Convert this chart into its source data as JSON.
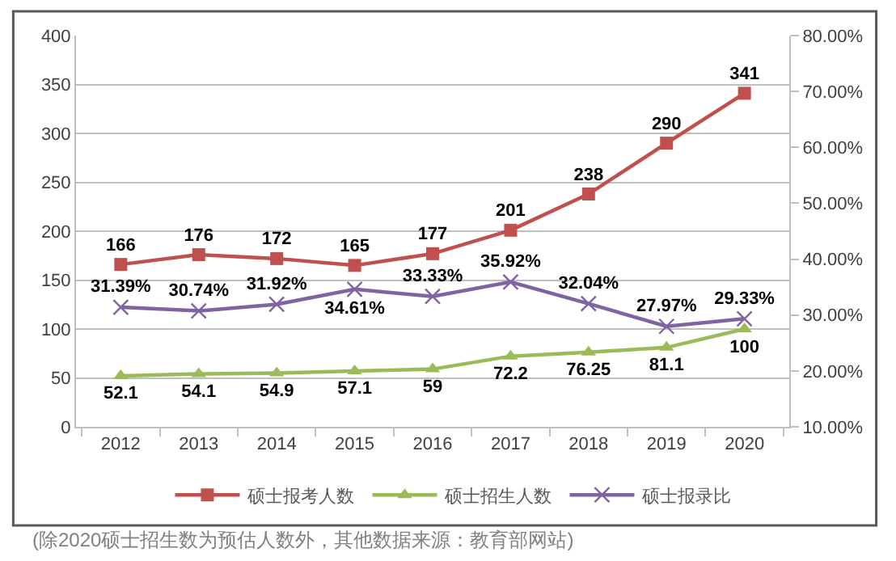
{
  "chart_data": {
    "type": "line",
    "categories": [
      "2012",
      "2013",
      "2014",
      "2015",
      "2016",
      "2017",
      "2018",
      "2019",
      "2020"
    ],
    "series": [
      {
        "name": "硕士报考人数",
        "color": "#c0504d",
        "marker": "square",
        "values": [
          166,
          176,
          172,
          165,
          177,
          201,
          238,
          290,
          341
        ],
        "value_labels": [
          "166",
          "176",
          "172",
          "165",
          "177",
          "201",
          "238",
          "290",
          "341"
        ]
      },
      {
        "name": "硕士招生人数",
        "color": "#9bbb59",
        "marker": "triangle",
        "values": [
          52.1,
          54.1,
          54.9,
          57.1,
          59,
          72.2,
          76.25,
          81.1,
          100
        ],
        "value_labels": [
          "52.1",
          "54.1",
          "54.9",
          "57.1",
          "59",
          "72.2",
          "76.25",
          "81.1",
          "100"
        ]
      },
      {
        "name": "硕士报录比",
        "color": "#8064a2",
        "marker": "cross",
        "axis": "y2",
        "values": [
          31.39,
          30.74,
          31.92,
          34.61,
          33.33,
          35.92,
          32.04,
          27.97,
          29.33
        ],
        "value_labels": [
          "31.39%",
          "30.74%",
          "31.92%",
          "34.61%",
          "33.33%",
          "35.92%",
          "32.04%",
          "27.97%",
          "29.33%"
        ]
      }
    ],
    "ylim": [
      0,
      400
    ],
    "yticks": [
      0,
      50,
      100,
      150,
      200,
      250,
      300,
      350,
      400
    ],
    "y2lim": [
      10,
      80
    ],
    "y2ticks": [
      {
        "value": 10,
        "label": "10.00%"
      },
      {
        "value": 20,
        "label": "20.00%"
      },
      {
        "value": 30,
        "label": "30.00%"
      },
      {
        "value": 40,
        "label": "40.00%"
      },
      {
        "value": 50,
        "label": "50.00%"
      },
      {
        "value": 60,
        "label": "60.00%"
      },
      {
        "value": 70,
        "label": "70.00%"
      },
      {
        "value": 80,
        "label": "80.00%"
      }
    ],
    "grid": "y",
    "legend": "bottom",
    "annotations": [
      "(除2020硕士招生数为预估人数外，其他数据来源：教育部网站)"
    ]
  }
}
